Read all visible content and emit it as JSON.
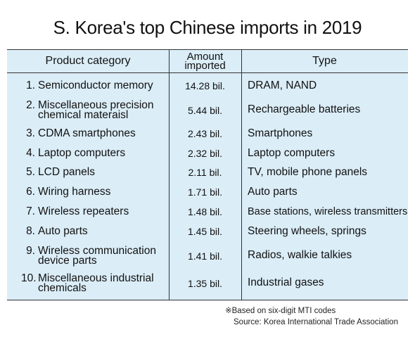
{
  "title": "S. Korea's top Chinese imports in 2019",
  "chart_data": {
    "type": "table",
    "columns": [
      "Product category",
      "Amount imported",
      "Type"
    ],
    "rows": [
      {
        "rank": "1.",
        "category": [
          "Semiconductor memory"
        ],
        "amount": "14.28 bil.",
        "type": "DRAM, NAND"
      },
      {
        "rank": "2.",
        "category": [
          "Miscellaneous precision",
          "chemical materaisl"
        ],
        "amount": "5.44 bil.",
        "type": "Rechargeable batteries"
      },
      {
        "rank": "3.",
        "category": [
          "CDMA smartphones"
        ],
        "amount": "2.43 bil.",
        "type": "Smartphones"
      },
      {
        "rank": "4.",
        "category": [
          "Laptop computers"
        ],
        "amount": "2.32 bil.",
        "type": "Laptop computers"
      },
      {
        "rank": "5.",
        "category": [
          "LCD panels"
        ],
        "amount": "2.11 bil.",
        "type": "TV, mobile phone panels"
      },
      {
        "rank": "6.",
        "category": [
          "Wiring harness"
        ],
        "amount": "1.71 bil.",
        "type": "Auto parts"
      },
      {
        "rank": "7.",
        "category": [
          "Wireless repeaters"
        ],
        "amount": "1.48 bil.",
        "type": "Base stations, wireless transmitters"
      },
      {
        "rank": "8.",
        "category": [
          "Auto parts"
        ],
        "amount": "1.45 bil.",
        "type": "Steering wheels, springs"
      },
      {
        "rank": "9.",
        "category": [
          "Wireless communication",
          "device parts"
        ],
        "amount": "1.41 bil.",
        "type": "Radios, walkie talkies"
      },
      {
        "rank": "10.",
        "category": [
          "Miscellaneous industrial",
          "chemicals"
        ],
        "amount": "1.35 bil.",
        "type": "Industrial gases"
      }
    ]
  },
  "header": {
    "category": "Product category",
    "amount_line1": "Amount",
    "amount_line2": "imported",
    "type": "Type"
  },
  "footnote": {
    "note": "※Based on six-digit MTI codes",
    "source": "Source: Korea International Trade Association"
  },
  "colors": {
    "table_background": "#dbedf7",
    "rule": "#333333"
  }
}
